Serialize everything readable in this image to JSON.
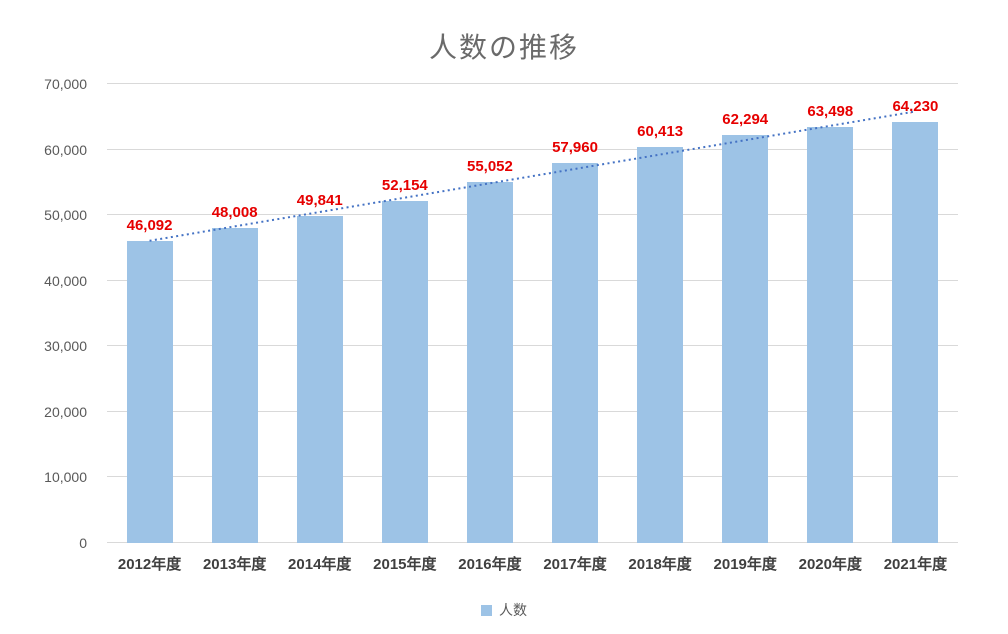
{
  "chart_data": {
    "type": "bar",
    "title": "人数の推移",
    "categories": [
      "2012年度",
      "2013年度",
      "2014年度",
      "2015年度",
      "2016年度",
      "2017年度",
      "2018年度",
      "2019年度",
      "2020年度",
      "2021年度"
    ],
    "series": [
      {
        "name": "人数",
        "values": [
          46092,
          48008,
          49841,
          52154,
          55052,
          57960,
          60413,
          62294,
          63498,
          64230
        ]
      }
    ],
    "data_labels": [
      "46,092",
      "48,008",
      "49,841",
      "52,154",
      "55,052",
      "57,960",
      "60,413",
      "62,294",
      "63,498",
      "64,230"
    ],
    "xlabel": "",
    "ylabel": "",
    "ylim": [
      0,
      70000
    ],
    "yticks": [
      0,
      10000,
      20000,
      30000,
      40000,
      50000,
      60000,
      70000
    ],
    "grid": true,
    "legend": [
      "人数"
    ],
    "legend_position": "bottom",
    "trendline": {
      "type": "linear",
      "style": "dotted",
      "color": "#4472C4",
      "start_value": 46092,
      "end_value": 65817
    },
    "colors": {
      "bar_fill": "#9DC3E6",
      "data_label": "#E60000",
      "gridline": "#D9D9D9",
      "axis_text": "#595959",
      "category_text": "#3F3F3F",
      "title_text": "#6A6A6A"
    }
  }
}
